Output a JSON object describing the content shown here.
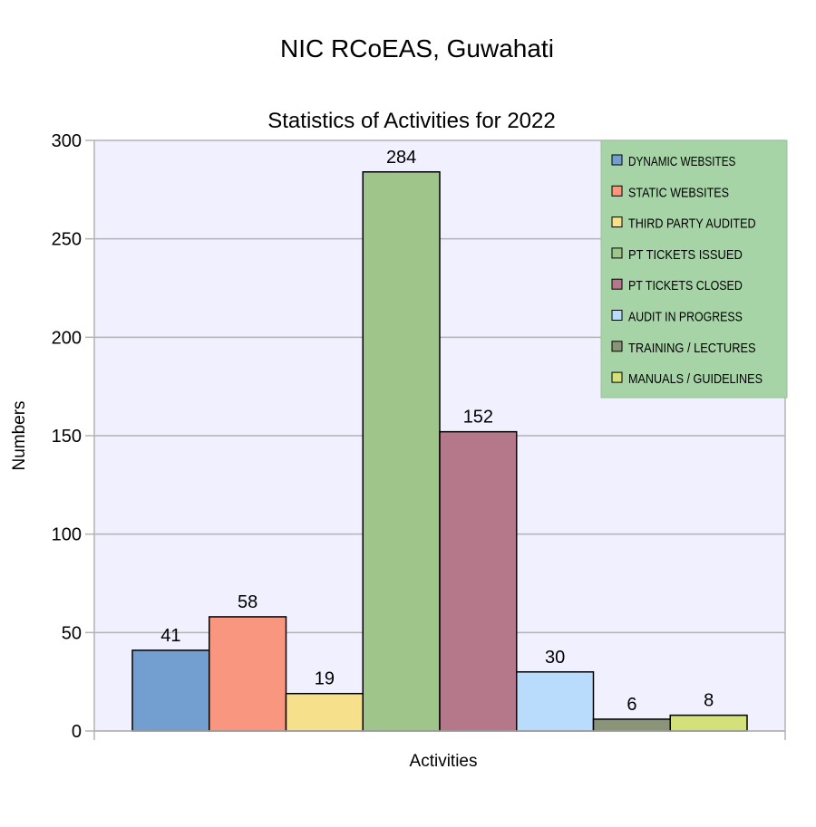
{
  "chart_data": {
    "type": "bar",
    "supertitle": "NIC RCoEAS, Guwahati",
    "title": "Statistics of Activities for 2022",
    "xlabel": "Activities",
    "ylabel": "Numbers",
    "ylim": [
      0,
      300
    ],
    "yticks": [
      0,
      50,
      100,
      150,
      200,
      250,
      300
    ],
    "yticklabels": [
      "0",
      "50",
      "100",
      "150",
      "200",
      "250",
      "300"
    ],
    "grid": true,
    "legend_position": "top-right",
    "plot_background": "#f0f0ff",
    "legend_background": "#a6d4a6",
    "series": [
      {
        "name": "DYNAMIC WEBSITES",
        "value": 41,
        "label": "41",
        "color": "#729fcf"
      },
      {
        "name": "STATIC WEBSITES",
        "value": 58,
        "label": "58",
        "color": "#f99680"
      },
      {
        "name": "THIRD PARTY AUDITED",
        "value": 19,
        "label": "19",
        "color": "#f7e08c"
      },
      {
        "name": "PT TICKETS ISSUED",
        "value": 284,
        "label": "284",
        "color": "#a0c58a"
      },
      {
        "name": "PT TICKETS CLOSED",
        "value": 152,
        "label": "152",
        "color": "#b5788b"
      },
      {
        "name": "AUDIT IN PROGRESS",
        "value": 30,
        "label": "30",
        "color": "#b9dcfc"
      },
      {
        "name": "TRAINING / LECTURES",
        "value": 6,
        "label": "6",
        "color": "#8a9478"
      },
      {
        "name": "MANUALS / GUIDELINES",
        "value": 8,
        "label": "8",
        "color": "#d4e17a"
      }
    ]
  }
}
